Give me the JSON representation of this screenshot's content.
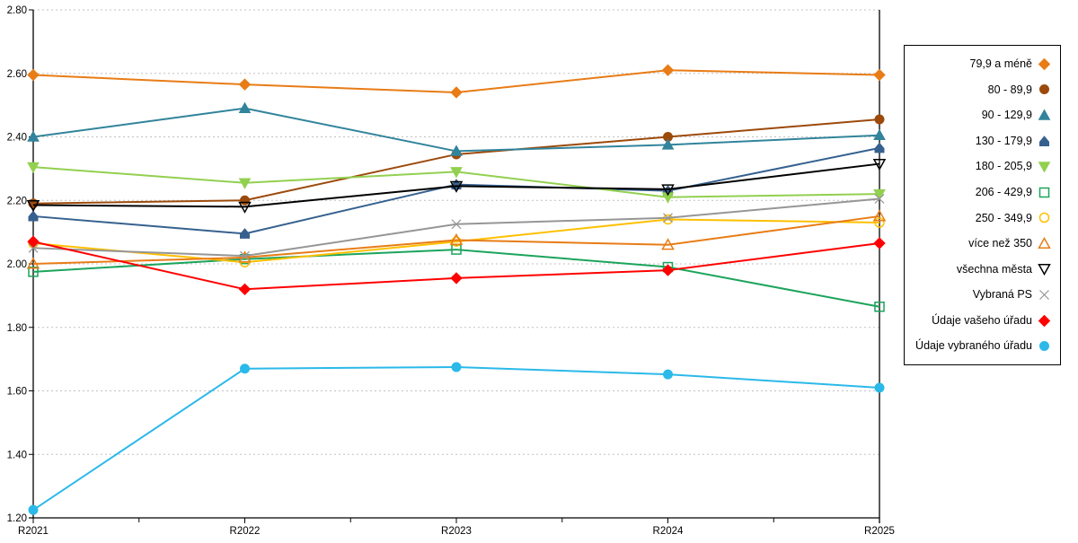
{
  "chart_data": {
    "type": "line",
    "title": "",
    "xlabel": "",
    "ylabel": "",
    "categories": [
      "R2021",
      "R2022",
      "R2023",
      "R2024",
      "R2025"
    ],
    "ylim": [
      1.2,
      2.8
    ],
    "y_tick_labels": [
      "1.20",
      "1.40",
      "1.60",
      "1.80",
      "2.00",
      "2.20",
      "2.40",
      "2.60",
      "2.80"
    ],
    "grid": "horizontal-dotted",
    "legend_position": "right-box",
    "series": [
      {
        "name": "79,9 a méně",
        "color": "#E87C16",
        "marker": "diamond",
        "fill": "filled",
        "values": [
          2.595,
          2.565,
          2.54,
          2.61,
          2.595
        ]
      },
      {
        "name": "80 - 89,9",
        "color": "#9C4A0B",
        "marker": "circle",
        "fill": "filled",
        "values": [
          2.19,
          2.2,
          2.345,
          2.4,
          2.455
        ]
      },
      {
        "name": "90 - 129,9",
        "color": "#31849B",
        "marker": "triangle-up",
        "fill": "filled",
        "values": [
          2.4,
          2.49,
          2.355,
          2.375,
          2.405
        ]
      },
      {
        "name": "130 - 179,9",
        "color": "#36618F",
        "marker": "pentagon",
        "fill": "filled",
        "values": [
          2.15,
          2.095,
          2.25,
          2.23,
          2.365
        ]
      },
      {
        "name": "180 - 205,9",
        "color": "#92D050",
        "marker": "triangle-down",
        "fill": "filled",
        "values": [
          2.305,
          2.255,
          2.29,
          2.21,
          2.22
        ]
      },
      {
        "name": "206 - 429,9",
        "color": "#1CA45C",
        "marker": "square",
        "fill": "open",
        "values": [
          1.975,
          2.015,
          2.045,
          1.99,
          1.865
        ]
      },
      {
        "name": "250 - 349,9",
        "color": "#FFC000",
        "marker": "circle",
        "fill": "open",
        "values": [
          2.065,
          2.005,
          2.07,
          2.14,
          2.13
        ]
      },
      {
        "name": "více než 350",
        "color": "#E87C16",
        "marker": "triangle-up",
        "fill": "open",
        "values": [
          2.0,
          2.02,
          2.075,
          2.06,
          2.15
        ]
      },
      {
        "name": "všechna města",
        "color": "#000000",
        "marker": "triangle-down",
        "fill": "open",
        "values": [
          2.185,
          2.18,
          2.245,
          2.235,
          2.315
        ]
      },
      {
        "name": "Vybraná PS",
        "color": "#969696",
        "marker": "x",
        "fill": "open",
        "values": [
          2.05,
          2.025,
          2.125,
          2.145,
          2.205
        ]
      },
      {
        "name": "Údaje vašeho úřadu",
        "color": "#FF0000",
        "marker": "diamond",
        "fill": "filled",
        "values": [
          2.07,
          1.92,
          1.955,
          1.98,
          2.065
        ]
      },
      {
        "name": "Údaje vybraného úřadu",
        "color": "#2BB9E9",
        "marker": "circle",
        "fill": "filled",
        "values": [
          1.225,
          1.67,
          1.675,
          1.652,
          1.61
        ]
      }
    ]
  },
  "colors": {
    "background": "#FFFFFF",
    "grid": "#C0C0C0",
    "axis": "#000000",
    "legend_border": "#000000",
    "tick_label": "#000000"
  }
}
